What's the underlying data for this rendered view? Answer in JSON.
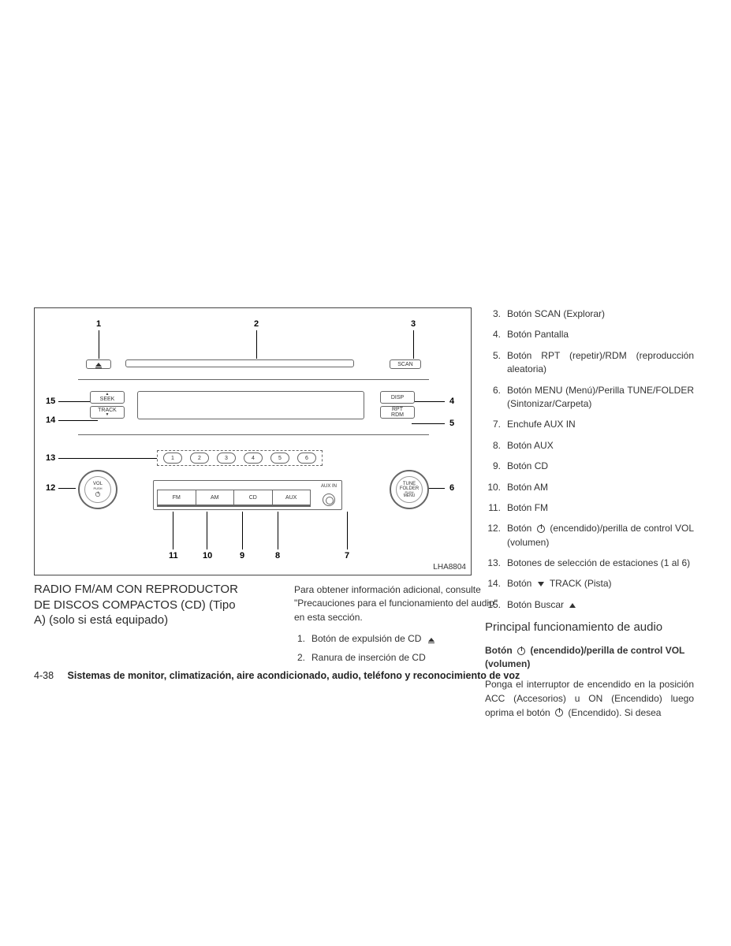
{
  "diagram": {
    "id": "LHA8804",
    "callouts_top": [
      "1",
      "2",
      "3"
    ],
    "callouts_right": [
      "4",
      "5",
      "6"
    ],
    "callouts_left": [
      "15",
      "14",
      "13",
      "12"
    ],
    "callouts_bottom": [
      "11",
      "10",
      "9",
      "8",
      "7"
    ],
    "scan_label": "SCAN",
    "seek_label": "SEEK",
    "track_label": "TRACK",
    "disp_label": "DISP",
    "rpt_label": "RPT",
    "rdm_label": "RDM",
    "presets": [
      "1",
      "2",
      "3",
      "4",
      "5",
      "6"
    ],
    "fm": "FM",
    "am": "AM",
    "cd": "CD",
    "aux": "AUX",
    "auxin": "AUX IN",
    "vol": "VOL",
    "vol_sub": "PUSH",
    "tune": "TUNE",
    "folder": "FOLDER",
    "tune_sub": "PUSH",
    "menu": "MENU"
  },
  "section_title": "RADIO FM/AM CON REPRODUCTOR DE DISCOS COMPACTOS (CD) (Tipo A) (solo si está equipado)",
  "mid": {
    "intro": "Para obtener información adicional, consulte \"Precauciones para el funcionamiento del audio\" en esta sección.",
    "items": [
      {
        "n": "1.",
        "t": "Botón de expulsión de CD",
        "glyph": "eject"
      },
      {
        "n": "2.",
        "t": "Ranura de inserción de CD"
      }
    ]
  },
  "right": {
    "items": [
      {
        "n": "3.",
        "t": "Botón SCAN (Explorar)"
      },
      {
        "n": "4.",
        "t": "Botón Pantalla"
      },
      {
        "n": "5.",
        "t": "Botón RPT (repetir)/RDM (reproducción aleatoria)",
        "justify": true
      },
      {
        "n": "6.",
        "t": "Botón MENU (Menú)/Perilla TUNE/FOLDER (Sintonizar/Carpeta)",
        "justify": true
      },
      {
        "n": "7.",
        "t": "Enchufe AUX IN"
      },
      {
        "n": "8.",
        "t": "Botón AUX"
      },
      {
        "n": "9.",
        "t": "Botón CD"
      },
      {
        "n": "10.",
        "t": "Botón AM"
      },
      {
        "n": "11.",
        "t": "Botón FM"
      },
      {
        "n": "12.",
        "pre": "Botón",
        "glyph": "power",
        "post": "(encendido)/perilla de control VOL (volumen)",
        "justify": true
      },
      {
        "n": "13.",
        "t": "Botones de selección de estaciones (1 al 6)"
      },
      {
        "n": "14.",
        "pre": "Botón",
        "glyph": "tridown",
        "post": "TRACK (Pista)"
      },
      {
        "n": "15.",
        "pre": "Botón Buscar",
        "glyph": "triup"
      }
    ],
    "subhead": "Principal funcionamiento de audio",
    "bold_pre": "Botón",
    "bold_post": "(encendido)/perilla de control VOL (volumen)",
    "body_pre": "Ponga el interruptor de encendido en la posición ACC (Accesorios) u ON (Encendido) luego oprima el botón",
    "body_post": "(Encendido). Si desea"
  },
  "footer": {
    "page": "4-38",
    "text": "Sistemas de monitor, climatización, aire acondicionado, audio, teléfono y reconocimiento de voz"
  }
}
